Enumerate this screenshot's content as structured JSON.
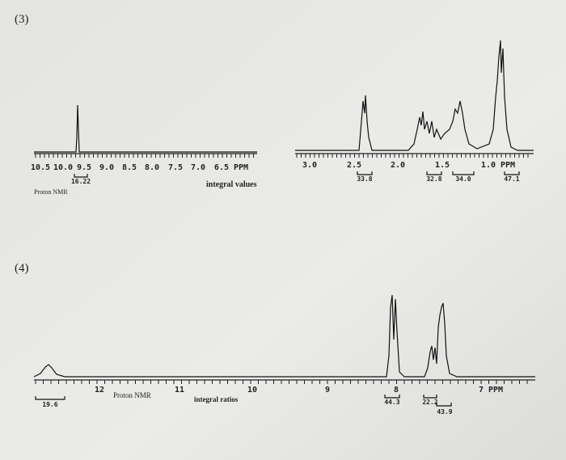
{
  "problem3": {
    "label": "(3)",
    "left_axis_ticks": [
      "10.5",
      "10.0",
      "9.5",
      "9.0",
      "8.5",
      "8.0",
      "7.5",
      "7.0",
      "6.5 PPM"
    ],
    "left_integrals": [
      "16.22"
    ],
    "caption": "Proton NMR",
    "integral_caption": "integral values",
    "right_axis_ticks": [
      "3.0",
      "2.5",
      "2.0",
      "1.5",
      "1.0 PPM"
    ],
    "right_integrals": [
      "33.8",
      "32.8",
      "34.0",
      "47.1"
    ]
  },
  "problem4": {
    "label": "(4)",
    "axis_ticks": [
      "12",
      "11",
      "10",
      "9",
      "8",
      "7 PPM"
    ],
    "caption": "Proton NMR",
    "integral_caption": "integral ratios",
    "integrals": [
      "19.6",
      "44.3",
      "22.2",
      "43.9"
    ]
  }
}
